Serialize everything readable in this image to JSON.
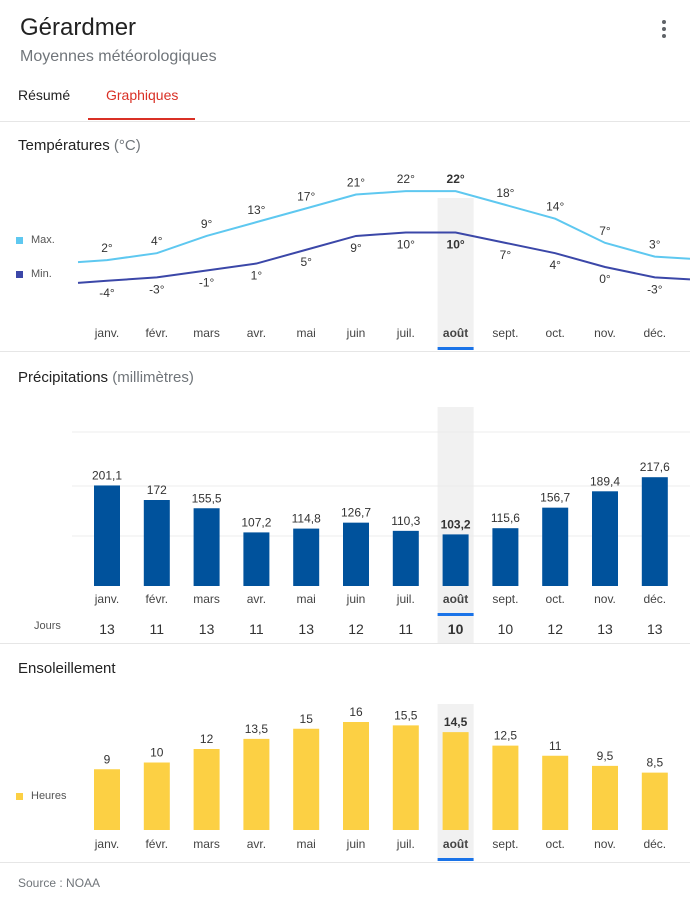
{
  "header": {
    "title": "Gérardmer",
    "subtitle": "Moyennes météorologiques",
    "menu_icon": "more-vert-icon"
  },
  "tabs": [
    {
      "label": "Résumé",
      "active": false
    },
    {
      "label": "Graphiques",
      "active": true
    }
  ],
  "months": [
    "janv.",
    "févr.",
    "mars",
    "avr.",
    "mai",
    "juin",
    "juil.",
    "août",
    "sept.",
    "oct.",
    "nov.",
    "déc."
  ],
  "selected_month_index": 7,
  "temperatures": {
    "title": "Températures",
    "unit": "(°C)",
    "legend": [
      {
        "label": "Max.",
        "color": "#5ec8f0"
      },
      {
        "label": "Min.",
        "color": "#3b47a8"
      }
    ]
  },
  "precipitation": {
    "title": "Précipitations",
    "unit": "(millimètres)",
    "days_label": "Jours",
    "color": "#00529c"
  },
  "sunshine": {
    "title": "Ensoleillement",
    "legend_label": "Heures",
    "color": "#fcd044"
  },
  "footer": {
    "source": "Source : NOAA"
  },
  "chart_data": [
    {
      "type": "line",
      "title": "Températures",
      "unit": "°C",
      "categories": [
        "janv.",
        "févr.",
        "mars",
        "avr.",
        "mai",
        "juin",
        "juil.",
        "août",
        "sept.",
        "oct.",
        "nov.",
        "déc."
      ],
      "series": [
        {
          "name": "Max.",
          "values": [
            2,
            4,
            9,
            13,
            17,
            21,
            22,
            22,
            18,
            14,
            7,
            3
          ],
          "labels": [
            "2°",
            "4°",
            "9°",
            "13°",
            "17°",
            "21°",
            "22°",
            "22°",
            "18°",
            "14°",
            "7°",
            "3°"
          ],
          "color": "#5ec8f0"
        },
        {
          "name": "Min.",
          "values": [
            -4,
            -3,
            -1,
            1,
            5,
            9,
            10,
            10,
            7,
            4,
            0,
            -3
          ],
          "labels": [
            "-4°",
            "-3°",
            "-1°",
            "1°",
            "5°",
            "9°",
            "10°",
            "10°",
            "7°",
            "4°",
            "0°",
            "-3°"
          ],
          "color": "#3b47a8"
        }
      ],
      "grid": false
    },
    {
      "type": "bar",
      "title": "Précipitations",
      "unit": "millimètres",
      "categories": [
        "janv.",
        "févr.",
        "mars",
        "avr.",
        "mai",
        "juin",
        "juil.",
        "août",
        "sept.",
        "oct.",
        "nov.",
        "déc."
      ],
      "values": [
        201.1,
        172,
        155.5,
        107.2,
        114.8,
        126.7,
        110.3,
        103.2,
        115.6,
        156.7,
        189.4,
        217.6
      ],
      "labels": [
        "201,1",
        "172",
        "155,5",
        "107,2",
        "114,8",
        "126,7",
        "110,3",
        "103,2",
        "115,6",
        "156,7",
        "189,4",
        "217,6"
      ],
      "days": [
        13,
        11,
        13,
        11,
        13,
        12,
        11,
        10,
        10,
        12,
        13,
        13
      ],
      "color": "#00529c",
      "ylim": [
        0,
        300
      ],
      "grid": true
    },
    {
      "type": "bar",
      "title": "Ensoleillement",
      "series_name": "Heures",
      "categories": [
        "janv.",
        "févr.",
        "mars",
        "avr.",
        "mai",
        "juin",
        "juil.",
        "août",
        "sept.",
        "oct.",
        "nov.",
        "déc."
      ],
      "values": [
        9,
        10,
        12,
        13.5,
        15,
        16,
        15.5,
        14.5,
        12.5,
        11,
        9.5,
        8.5
      ],
      "labels": [
        "9",
        "10",
        "12",
        "13,5",
        "15",
        "16",
        "15,5",
        "14,5",
        "12,5",
        "11",
        "9,5",
        "8,5"
      ],
      "color": "#fcd044",
      "grid": false
    }
  ]
}
